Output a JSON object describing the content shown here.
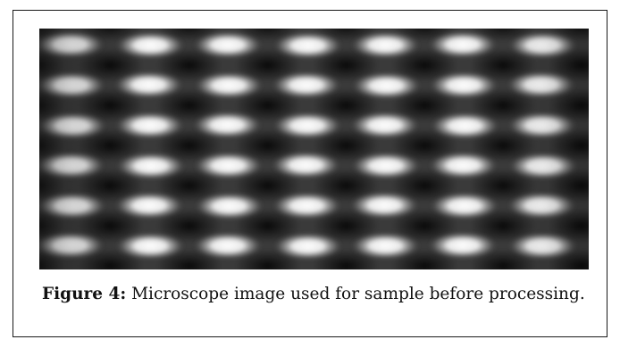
{
  "figure": {
    "label": "Figure 4:",
    "caption": " Microscope image used for sample before processing.",
    "image": {
      "rows": 6,
      "columns": 7,
      "background_color": "#191919",
      "spot_color": "#f4f4f4"
    }
  }
}
